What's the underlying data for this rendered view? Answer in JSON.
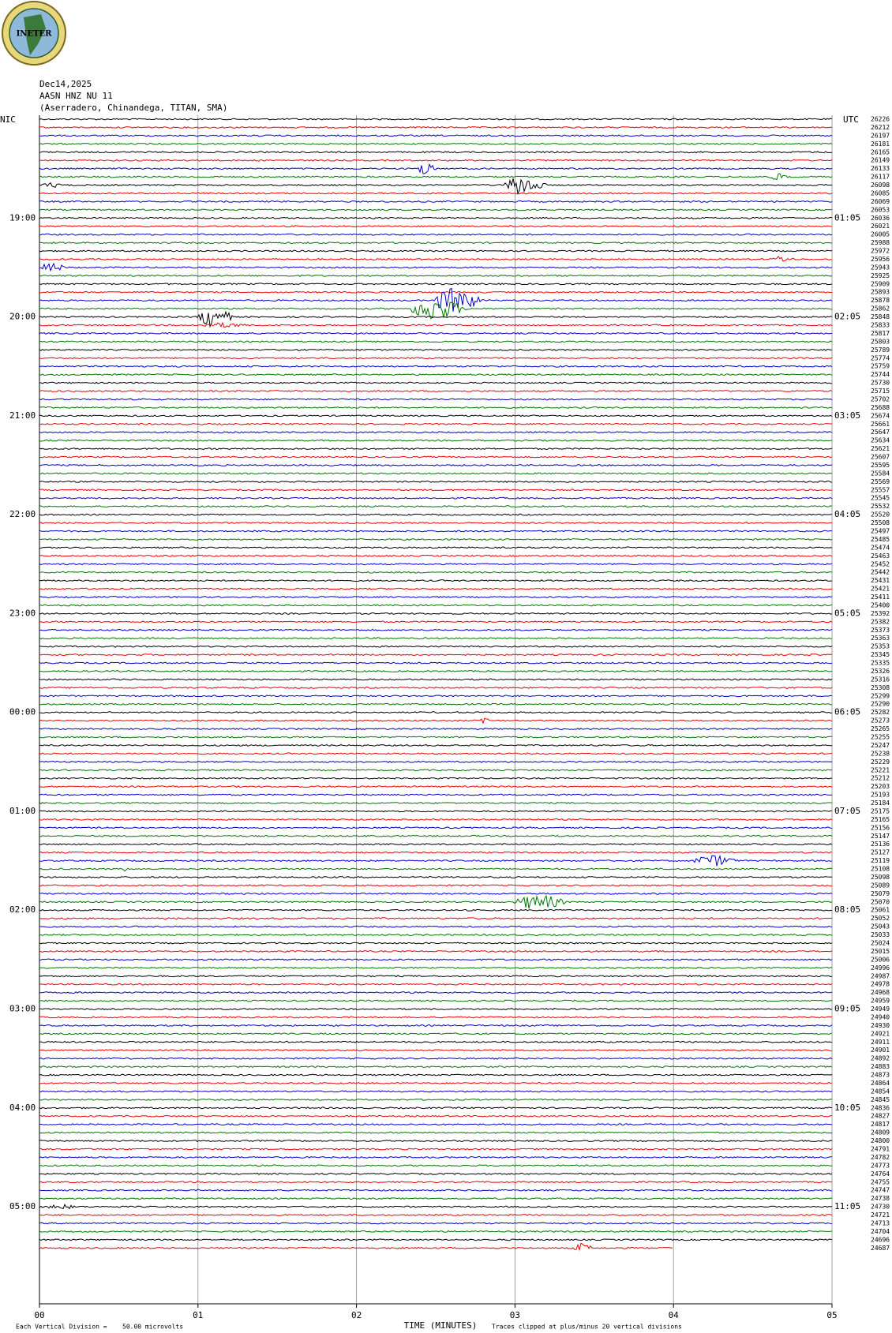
{
  "logo": "INETER",
  "header": {
    "date": "Dec14,2025",
    "station": "AASN HNZ NU 11",
    "location": "(Aserradero, Chinandega, TITAN, SMA)"
  },
  "left_zone": "NIC",
  "right_zone": "UTC",
  "left_times": [
    "19:00",
    "20:00",
    "21:00",
    "22:00",
    "23:00",
    "00:00",
    "01:00",
    "02:00",
    "03:00",
    "04:00",
    "05:00"
  ],
  "right_times": [
    "01:05",
    "02:05",
    "03:05",
    "04:05",
    "05:05",
    "06:05",
    "07:05",
    "08:05",
    "09:05",
    "10:05",
    "11:05"
  ],
  "trace_counts": [
    "26226",
    "26212",
    "26197",
    "26181",
    "26165",
    "26149",
    "26133",
    "26117",
    "26098",
    "26085",
    "26069",
    "26053",
    "26036",
    "26021",
    "26005",
    "25988",
    "25972",
    "25956",
    "25943",
    "25925",
    "25909",
    "25893",
    "25878",
    "25862",
    "25848",
    "25833",
    "25817",
    "25803",
    "25789",
    "25774",
    "25759",
    "25744",
    "25730",
    "25715",
    "25702",
    "25688",
    "25674",
    "25661",
    "25647",
    "25634",
    "25621",
    "25607",
    "25595",
    "25584",
    "25569",
    "25557",
    "25545",
    "25532",
    "25520",
    "25508",
    "25497",
    "25485",
    "25474",
    "25463",
    "25452",
    "25442",
    "25431",
    "25421",
    "25411",
    "25400",
    "25392",
    "25382",
    "25373",
    "25363",
    "25353",
    "25345",
    "25335",
    "25326",
    "25316",
    "25308",
    "25299",
    "25290",
    "25282",
    "25273",
    "25265",
    "25255",
    "25247",
    "25238",
    "25229",
    "25221",
    "25212",
    "25203",
    "25193",
    "25184",
    "25175",
    "25165",
    "25156",
    "25147",
    "25136",
    "25127",
    "25119",
    "25108",
    "25098",
    "25089",
    "25079",
    "25070",
    "25061",
    "25052",
    "25043",
    "25033",
    "25024",
    "25015",
    "25006",
    "24996",
    "24987",
    "24978",
    "24968",
    "24959",
    "24949",
    "24940",
    "24930",
    "24921",
    "24911",
    "24901",
    "24892",
    "24883",
    "24873",
    "24864",
    "24854",
    "24845",
    "24836",
    "24827",
    "24817",
    "24809",
    "24800",
    "24791",
    "24782",
    "24773",
    "24764",
    "24755",
    "24747",
    "24738",
    "24730",
    "24721",
    "24713",
    "24704",
    "24696",
    "24687"
  ],
  "x_ticks": [
    "00",
    "01",
    "02",
    "03",
    "04",
    "05"
  ],
  "x_label": "TIME (MINUTES)",
  "footer": {
    "division": "Each Vertical Division =",
    "division_value": "50.00 microvolts",
    "clip_note": "Traces clipped at plus/minus 20 vertical divisions"
  }
}
